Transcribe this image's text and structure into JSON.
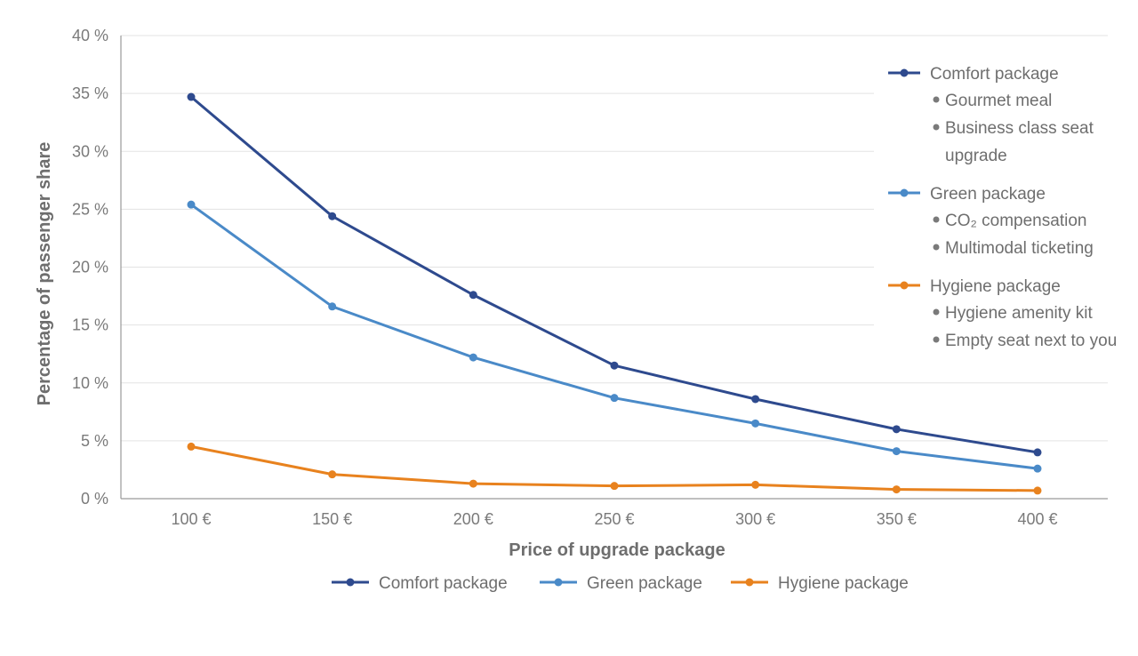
{
  "chart_data": {
    "type": "line",
    "xlabel": "Price of upgrade package",
    "ylabel": "Percentage of passenger share",
    "categories": [
      "100 €",
      "150 €",
      "200 €",
      "250 €",
      "300 €",
      "350 €",
      "400 €"
    ],
    "y_ticks": [
      "0 %",
      "5 %",
      "10 %",
      "15 %",
      "20 %",
      "25 %",
      "30 %",
      "35 %",
      "40 %"
    ],
    "ylim": [
      0,
      40
    ],
    "grid": true,
    "legend_position": "bottom",
    "series": [
      {
        "name": "Comfort package",
        "color": "#2e4a8e",
        "values": [
          34.7,
          24.4,
          17.6,
          11.5,
          8.6,
          6.0,
          4.0
        ]
      },
      {
        "name": "Green package",
        "color": "#4a8ac8",
        "values": [
          25.4,
          16.6,
          12.2,
          8.7,
          6.5,
          4.1,
          2.6
        ]
      },
      {
        "name": "Hygiene package",
        "color": "#e8821e",
        "values": [
          4.5,
          2.1,
          1.3,
          1.1,
          1.2,
          0.8,
          0.7
        ]
      }
    ],
    "annotation": {
      "groups": [
        {
          "name": "Comfort package",
          "color": "#2e4a8e",
          "bullets": [
            "Gourmet meal",
            "Business class seat upgrade"
          ]
        },
        {
          "name": "Green package",
          "color": "#4a8ac8",
          "bullets": [
            "CO₂ compensation",
            "Multimodal ticketing"
          ]
        },
        {
          "name": "Hygiene package",
          "color": "#e8821e",
          "bullets": [
            "Hygiene amenity kit",
            "Empty seat next to you"
          ]
        }
      ]
    }
  }
}
